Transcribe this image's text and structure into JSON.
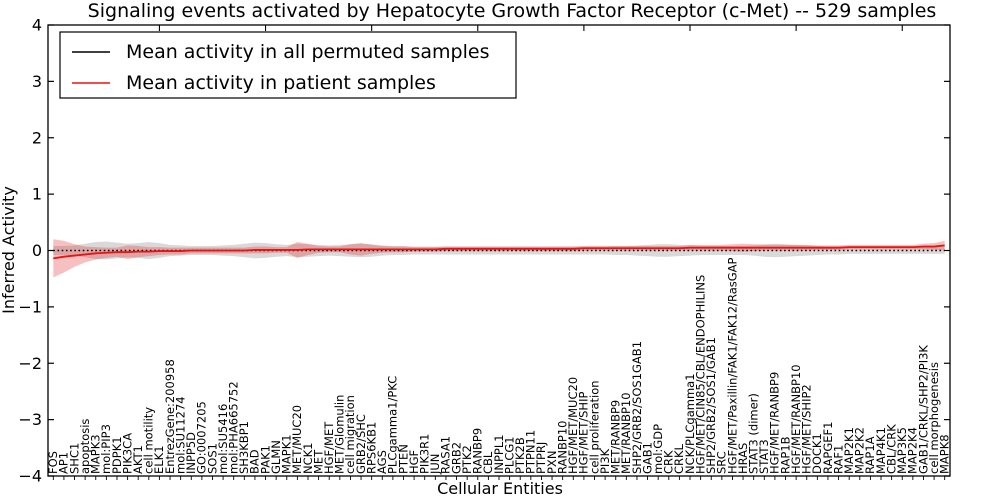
{
  "chart_data": {
    "type": "line",
    "title": "Signaling events activated by Hepatocyte Growth Factor Receptor (c-Met) -- 529 samples",
    "xlabel": "Cellular Entities",
    "ylabel": "Inferred Activity",
    "ylim": [
      -4,
      4
    ],
    "yticks": [
      4,
      3,
      2,
      1,
      0,
      -1,
      -2,
      -3,
      -4
    ],
    "grid": false,
    "legend_position": "upper left",
    "legend": [
      "Mean activity in all permuted samples",
      "Mean activity in patient samples"
    ],
    "categories": [
      "FOS",
      "AP1",
      "SHC1",
      "apoptosis",
      "MAPK3",
      "mol:PIP3",
      "PDPK1",
      "PIK3CA",
      "AKT1",
      "cell motility",
      "ELK1",
      "EntrezGene:200958",
      "mol:SU11274",
      "INPP5D",
      "GO:0007205",
      "SOS1",
      "mol:SU5416",
      "mol:PHA665752",
      "SH3KBP1",
      "BAD",
      "PAK1",
      "GLMN",
      "MAPK1",
      "MET/MUC20",
      "NCK1",
      "MET",
      "HGF/MET",
      "MET/Glomulin",
      "cell migration",
      "GRB2/SHC",
      "RPS6KB1",
      "AGS",
      "PLCgamma1/PKC",
      "PTEN",
      "HGF",
      "PIK3R1",
      "JUN",
      "RASA1",
      "GRB2",
      "PTK2",
      "RANBP9",
      "CBL",
      "INPPL1",
      "PLCG1",
      "PTK2B",
      "PTPN11",
      "PTPRJ",
      "PXN",
      "RANBP10",
      "HGF/MET/MUC20",
      "HGF/MET/SHIP",
      "cell proliferation",
      "PI3K",
      "MET/RANBP9",
      "MET/RANBP10",
      "SHP2/GRB2/SOS1GAB1",
      "GAB1",
      "mol:GDP",
      "CRK",
      "CRKL",
      "NCK/PLCgamma1",
      "HGF/MET/CIN85/CBL/ENDOPHILINS",
      "SHP2/GRB2/SOS1/GAB1",
      "SRC",
      "HGF/MET/Paxillin/FAK1/FAK12/RasGAP",
      "HRAS",
      "STAT3 (dimer)",
      "STAT3",
      "HGF/MET/RANBP9",
      "RAP1B",
      "HGF/MET/RANBP10",
      "HGF/MET/SHIP2",
      "DOCK1",
      "RAPGEF1",
      "RAF1",
      "MAP2K1",
      "MAP2K2",
      "RAP1A",
      "MAP4K1",
      "CBL/CRK",
      "MAP3K5",
      "MAP2K4",
      "GAB1/CRKL/SHP2/PI3K",
      "cell morphogenesis",
      "MAPK8"
    ],
    "series": [
      {
        "name": "Mean activity in all permuted samples",
        "color": "#000000",
        "band_color": "rgba(0,0,0,0.15)",
        "style": "dotted",
        "values": [
          0,
          0,
          0,
          0,
          0,
          0,
          0,
          0,
          0,
          0,
          0,
          0,
          0,
          0,
          0,
          0,
          0,
          0,
          0,
          0,
          0,
          0,
          0,
          0,
          0,
          0,
          0,
          0,
          0,
          0,
          0,
          0,
          0,
          0,
          0,
          0,
          0,
          0,
          0,
          0,
          0,
          0,
          0,
          0,
          0,
          0,
          0,
          0,
          0,
          0,
          0,
          0,
          0,
          0,
          0,
          0,
          0,
          0,
          0,
          0,
          0,
          0,
          0,
          0,
          0,
          0,
          0,
          0,
          0,
          0,
          0,
          0,
          0,
          0,
          0,
          0,
          0,
          0,
          0,
          0,
          0,
          0,
          0,
          0,
          0
        ],
        "band_halfwidth": [
          0.08,
          0.08,
          0.09,
          0.12,
          0.15,
          0.16,
          0.14,
          0.12,
          0.13,
          0.15,
          0.13,
          0.1,
          0.09,
          0.08,
          0.08,
          0.08,
          0.09,
          0.1,
          0.12,
          0.14,
          0.13,
          0.11,
          0.1,
          0.12,
          0.11,
          0.1,
          0.09,
          0.1,
          0.11,
          0.12,
          0.11,
          0.09,
          0.08,
          0.08,
          0.07,
          0.07,
          0.07,
          0.07,
          0.07,
          0.07,
          0.07,
          0.07,
          0.07,
          0.07,
          0.07,
          0.07,
          0.07,
          0.07,
          0.07,
          0.07,
          0.07,
          0.07,
          0.07,
          0.08,
          0.08,
          0.09,
          0.1,
          0.11,
          0.11,
          0.1,
          0.09,
          0.08,
          0.08,
          0.08,
          0.08,
          0.08,
          0.09,
          0.11,
          0.12,
          0.11,
          0.1,
          0.09,
          0.08,
          0.07,
          0.07,
          0.06,
          0.06,
          0.06,
          0.06,
          0.06,
          0.06,
          0.06,
          0.06,
          0.06,
          0.06
        ]
      },
      {
        "name": "Mean activity in patient samples",
        "color": "#e81313",
        "band_color": "rgba(230,45,45,0.30)",
        "style": "solid",
        "values": [
          -0.14,
          -0.11,
          -0.09,
          -0.07,
          -0.05,
          -0.04,
          -0.03,
          -0.03,
          -0.02,
          -0.02,
          -0.01,
          -0.01,
          -0.01,
          0,
          0,
          0,
          0,
          0,
          0,
          0.01,
          0.01,
          0.01,
          0.01,
          0.01,
          0.02,
          0.02,
          0.02,
          0.02,
          0.02,
          0.02,
          0.02,
          0.02,
          0.02,
          0.02,
          0.02,
          0.02,
          0.02,
          0.03,
          0.03,
          0.03,
          0.03,
          0.03,
          0.03,
          0.03,
          0.03,
          0.03,
          0.03,
          0.03,
          0.03,
          0.03,
          0.04,
          0.04,
          0.04,
          0.04,
          0.04,
          0.04,
          0.04,
          0.04,
          0.04,
          0.04,
          0.05,
          0.05,
          0.05,
          0.05,
          0.05,
          0.05,
          0.05,
          0.05,
          0.05,
          0.05,
          0.05,
          0.05,
          0.05,
          0.05,
          0.05,
          0.06,
          0.06,
          0.06,
          0.06,
          0.06,
          0.06,
          0.06,
          0.07,
          0.07,
          0.09
        ],
        "band_halfwidth": [
          0.34,
          0.28,
          0.2,
          0.14,
          0.11,
          0.09,
          0.08,
          0.12,
          0.1,
          0.08,
          0.07,
          0.06,
          0.06,
          0.05,
          0.05,
          0.05,
          0.05,
          0.05,
          0.05,
          0.06,
          0.06,
          0.05,
          0.05,
          0.14,
          0.1,
          0.06,
          0.05,
          0.05,
          0.09,
          0.11,
          0.08,
          0.06,
          0.05,
          0.05,
          0.04,
          0.04,
          0.04,
          0.04,
          0.04,
          0.04,
          0.04,
          0.04,
          0.04,
          0.04,
          0.04,
          0.04,
          0.04,
          0.04,
          0.04,
          0.04,
          0.04,
          0.04,
          0.04,
          0.04,
          0.04,
          0.04,
          0.04,
          0.04,
          0.04,
          0.04,
          0.05,
          0.05,
          0.05,
          0.05,
          0.06,
          0.07,
          0.06,
          0.05,
          0.05,
          0.05,
          0.05,
          0.05,
          0.04,
          0.04,
          0.04,
          0.04,
          0.04,
          0.04,
          0.04,
          0.04,
          0.04,
          0.04,
          0.05,
          0.06,
          0.08
        ]
      }
    ]
  }
}
